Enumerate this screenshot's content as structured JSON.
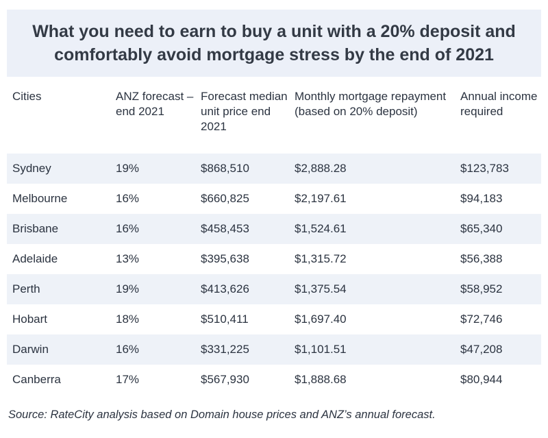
{
  "title": "What you need to earn to buy a unit with a 20% deposit and comfortably avoid mortgage stress by the end of 2021",
  "table": {
    "headers": [
      "Cities",
      "ANZ forecast – end 2021",
      "Forecast median unit price end 2021",
      "Monthly mortgage repayment (based on 20% deposit)",
      "Annual income required"
    ],
    "rows": [
      [
        "Sydney",
        "19%",
        "$868,510",
        "$2,888.28",
        "$123,783"
      ],
      [
        "Melbourne",
        "16%",
        "$660,825",
        "$2,197.61",
        "$94,183"
      ],
      [
        "Brisbane",
        "16%",
        "$458,453",
        "$1,524.61",
        "$65,340"
      ],
      [
        "Adelaide",
        "13%",
        "$395,638",
        "$1,315.72",
        "$56,388"
      ],
      [
        "Perth",
        "19%",
        "$413,626",
        "$1,375.54",
        "$58,952"
      ],
      [
        "Hobart",
        "18%",
        "$510,411",
        "$1,697.40",
        "$72,746"
      ],
      [
        "Darwin",
        "16%",
        "$331,225",
        "$1,101.51",
        "$47,208"
      ],
      [
        "Canberra",
        "17%",
        "$567,930",
        "$1,888.68",
        "$80,944"
      ]
    ]
  },
  "source": "Source: RateCity analysis based on Domain house prices and ANZ’s annual forecast.",
  "colors": {
    "title_background": "#ecf0f8",
    "stripe": "#eef2f8",
    "text": "#2b3340"
  }
}
